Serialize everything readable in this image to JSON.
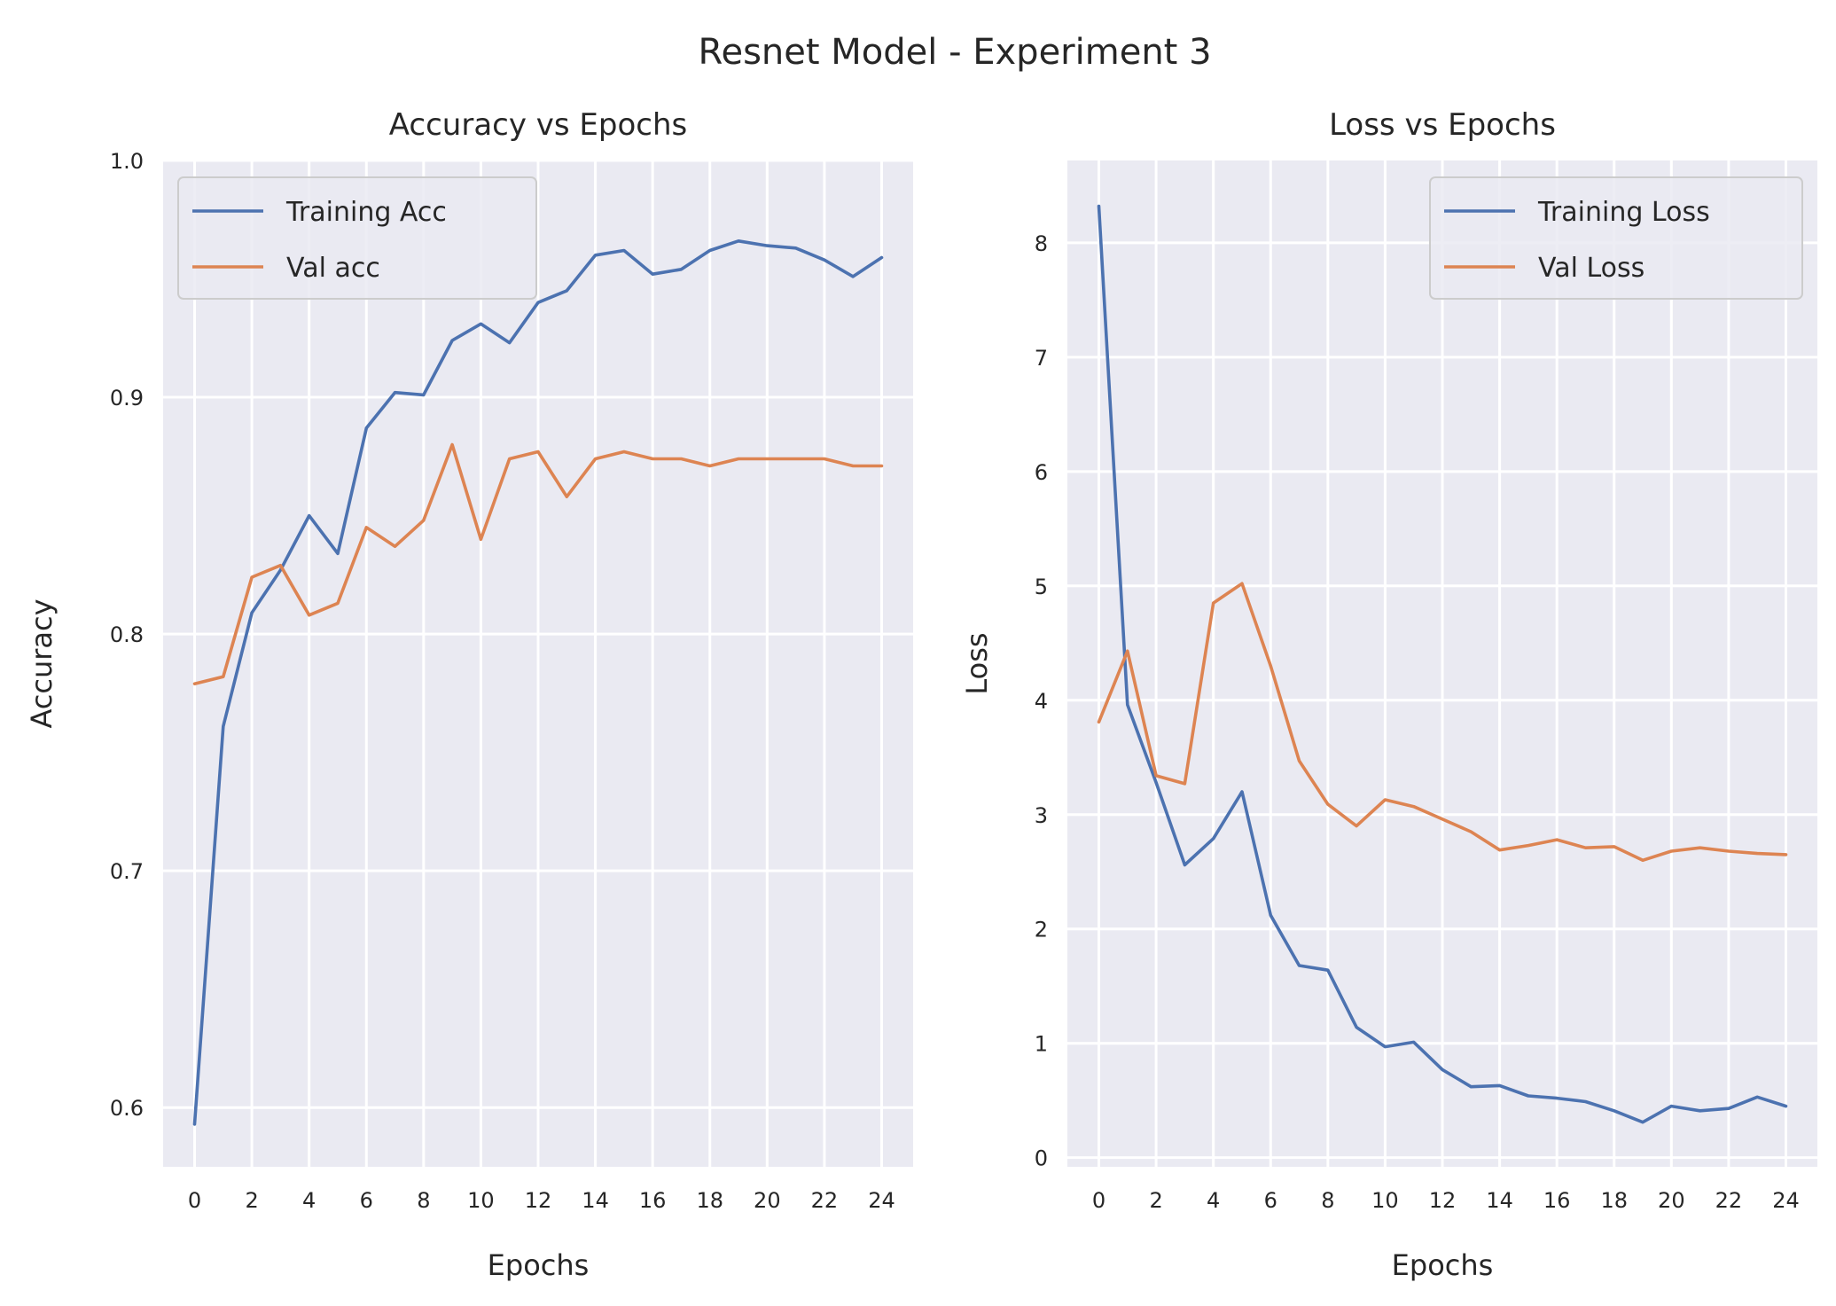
{
  "figure": {
    "title": "Resnet Model - Experiment 3"
  },
  "chart_data": [
    {
      "type": "line",
      "title": "Accuracy vs Epochs",
      "xlabel": "Epochs",
      "ylabel": "Accuracy",
      "xlim": [
        -1.1,
        25.1
      ],
      "ylim": [
        0.575,
        1.0
      ],
      "xticks": [
        0,
        2,
        4,
        6,
        8,
        10,
        12,
        14,
        16,
        18,
        20,
        22,
        24
      ],
      "xtick_labels": [
        "0",
        "2",
        "4",
        "6",
        "8",
        "10",
        "12",
        "14",
        "16",
        "18",
        "20",
        "22",
        "24"
      ],
      "yticks": [
        0.6,
        0.7,
        0.8,
        0.9,
        1.0
      ],
      "ytick_labels": [
        "0.6",
        "0.7",
        "0.8",
        "0.9",
        "1.0"
      ],
      "grid": true,
      "legend": "upper-left",
      "x": [
        0,
        1,
        2,
        3,
        4,
        5,
        6,
        7,
        8,
        9,
        10,
        11,
        12,
        13,
        14,
        15,
        16,
        17,
        18,
        19,
        20,
        21,
        22,
        23,
        24
      ],
      "series": [
        {
          "name": "Training Acc",
          "color": "#4c72b0",
          "values": [
            0.593,
            0.761,
            0.809,
            0.827,
            0.85,
            0.834,
            0.887,
            0.902,
            0.901,
            0.924,
            0.931,
            0.923,
            0.94,
            0.945,
            0.96,
            0.962,
            0.952,
            0.954,
            0.962,
            0.966,
            0.964,
            0.963,
            0.958,
            0.951,
            0.959
          ]
        },
        {
          "name": "Val acc",
          "color": "#dd8452",
          "values": [
            0.779,
            0.782,
            0.824,
            0.829,
            0.808,
            0.813,
            0.845,
            0.837,
            0.848,
            0.88,
            0.84,
            0.874,
            0.877,
            0.858,
            0.874,
            0.877,
            0.874,
            0.874,
            0.871,
            0.874,
            0.874,
            0.874,
            0.874,
            0.871,
            0.871
          ]
        }
      ]
    },
    {
      "type": "line",
      "title": "Loss vs Epochs",
      "xlabel": "Epochs",
      "ylabel": "Loss",
      "xlim": [
        -1.1,
        25.1
      ],
      "ylim": [
        -0.08,
        8.72
      ],
      "xticks": [
        0,
        2,
        4,
        6,
        8,
        10,
        12,
        14,
        16,
        18,
        20,
        22,
        24
      ],
      "xtick_labels": [
        "0",
        "2",
        "4",
        "6",
        "8",
        "10",
        "12",
        "14",
        "16",
        "18",
        "20",
        "22",
        "24"
      ],
      "yticks": [
        0,
        1,
        2,
        3,
        4,
        5,
        6,
        7,
        8
      ],
      "ytick_labels": [
        "0",
        "1",
        "2",
        "3",
        "4",
        "5",
        "6",
        "7",
        "8"
      ],
      "grid": true,
      "legend": "upper-right",
      "x": [
        0,
        1,
        2,
        3,
        4,
        5,
        6,
        7,
        8,
        9,
        10,
        11,
        12,
        13,
        14,
        15,
        16,
        17,
        18,
        19,
        20,
        21,
        22,
        23,
        24
      ],
      "series": [
        {
          "name": "Training Loss",
          "color": "#4c72b0",
          "values": [
            8.32,
            3.96,
            3.28,
            2.56,
            2.79,
            3.2,
            2.12,
            1.68,
            1.64,
            1.14,
            0.97,
            1.01,
            0.77,
            0.62,
            0.63,
            0.54,
            0.52,
            0.49,
            0.41,
            0.31,
            0.45,
            0.41,
            0.43,
            0.53,
            0.45
          ]
        },
        {
          "name": "Val Loss",
          "color": "#dd8452",
          "values": [
            3.81,
            4.43,
            3.34,
            3.27,
            4.85,
            5.02,
            4.3,
            3.47,
            3.09,
            2.9,
            3.13,
            3.07,
            2.96,
            2.85,
            2.69,
            2.73,
            2.78,
            2.71,
            2.72,
            2.6,
            2.68,
            2.71,
            2.68,
            2.66,
            2.65
          ]
        }
      ]
    }
  ]
}
